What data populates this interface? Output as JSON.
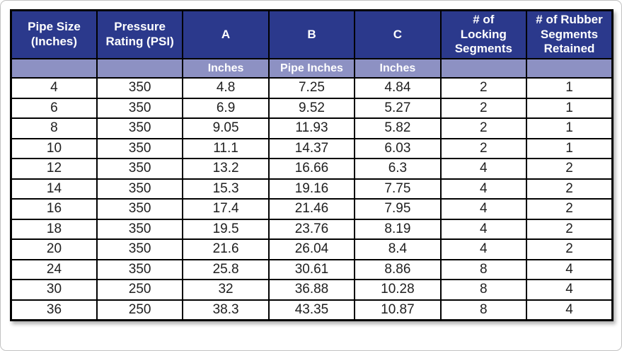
{
  "chart_data": {
    "type": "table",
    "columns": [
      {
        "label": "Pipe Size\n(Inches)",
        "sub": ""
      },
      {
        "label": "Pressure\nRating (PSI)",
        "sub": ""
      },
      {
        "label": "A",
        "sub": "Inches"
      },
      {
        "label": "B",
        "sub": "Pipe Inches"
      },
      {
        "label": "C",
        "sub": "Inches"
      },
      {
        "label": "# of\nLocking\nSegments",
        "sub": ""
      },
      {
        "label": "# of Rubber\nSegments\nRetained",
        "sub": ""
      }
    ],
    "rows": [
      [
        "4",
        "350",
        "4.8",
        "7.25",
        "4.84",
        "2",
        "1"
      ],
      [
        "6",
        "350",
        "6.9",
        "9.52",
        "5.27",
        "2",
        "1"
      ],
      [
        "8",
        "350",
        "9.05",
        "11.93",
        "5.82",
        "2",
        "1"
      ],
      [
        "10",
        "350",
        "11.1",
        "14.37",
        "6.03",
        "2",
        "1"
      ],
      [
        "12",
        "350",
        "13.2",
        "16.66",
        "6.3",
        "4",
        "2"
      ],
      [
        "14",
        "350",
        "15.3",
        "19.16",
        "7.75",
        "4",
        "2"
      ],
      [
        "16",
        "350",
        "17.4",
        "21.46",
        "7.95",
        "4",
        "2"
      ],
      [
        "18",
        "350",
        "19.5",
        "23.76",
        "8.19",
        "4",
        "2"
      ],
      [
        "20",
        "350",
        "21.6",
        "26.04",
        "8.4",
        "4",
        "2"
      ],
      [
        "24",
        "350",
        "25.8",
        "30.61",
        "8.86",
        "8",
        "4"
      ],
      [
        "30",
        "250",
        "32",
        "36.88",
        "10.28",
        "8",
        "4"
      ],
      [
        "36",
        "250",
        "38.3",
        "43.35",
        "10.87",
        "8",
        "4"
      ]
    ],
    "layout": {
      "grid": true,
      "header_rows": 2
    }
  },
  "colors": {
    "header_bg": "#2b398c",
    "subheader_bg": "#8d91c3",
    "header_text": "#ffffff",
    "body_text": "#1f1f1f",
    "border": "#000000"
  }
}
